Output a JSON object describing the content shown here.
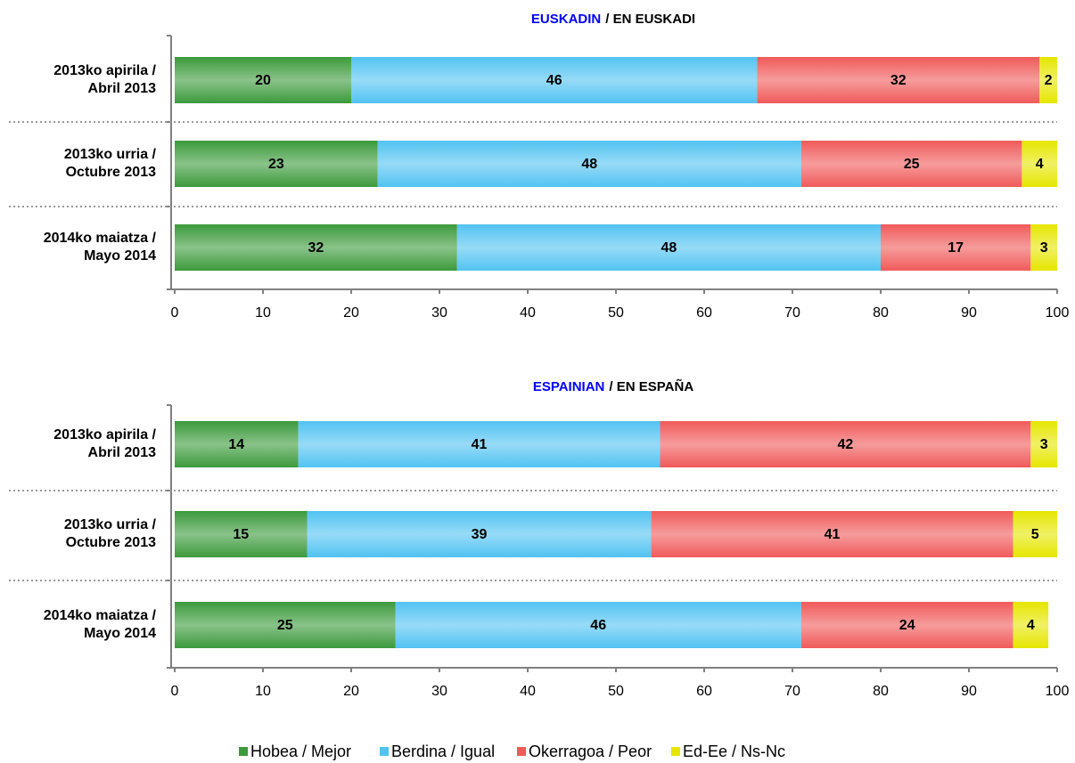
{
  "legend": [
    {
      "name": "Hobea / Mejor",
      "color": "#3c9a3c"
    },
    {
      "name": "Berdina / Igual",
      "color": "#52c3f2"
    },
    {
      "name": "Okerragoa / Peor",
      "color": "#f05a5a"
    },
    {
      "name": "Ed-Ee / Ns-Nc",
      "color": "#e6e600"
    }
  ],
  "chart_data": [
    {
      "type": "bar",
      "orientation": "horizontal",
      "stacked": true,
      "title_parts": [
        {
          "text": "EUSKADIN",
          "color": "#0000ff"
        },
        {
          "text": "/ EN EUSKADI",
          "color": "#000000"
        }
      ],
      "categories": [
        [
          "2013ko apirila /",
          "Abril 2013"
        ],
        [
          "2013ko urria /",
          "Octubre 2013"
        ],
        [
          "2014ko maiatza /",
          "Mayo 2014"
        ]
      ],
      "series": [
        {
          "values": [
            20,
            23,
            32
          ]
        },
        {
          "values": [
            46,
            48,
            48
          ]
        },
        {
          "values": [
            32,
            25,
            17
          ]
        },
        {
          "values": [
            2,
            4,
            3
          ]
        }
      ],
      "xlim": [
        0,
        100
      ],
      "xticks": [
        0,
        10,
        20,
        30,
        40,
        50,
        60,
        70,
        80,
        90,
        100
      ]
    },
    {
      "type": "bar",
      "orientation": "horizontal",
      "stacked": true,
      "title_parts": [
        {
          "text": "ESPAINIAN",
          "color": "#0000ff"
        },
        {
          "text": "/ EN ESPAÑA",
          "color": "#000000"
        }
      ],
      "categories": [
        [
          "2013ko apirila /",
          "Abril 2013"
        ],
        [
          "2013ko urria /",
          "Octubre 2013"
        ],
        [
          "2014ko maiatza /",
          "Mayo 2014"
        ]
      ],
      "series": [
        {
          "values": [
            14,
            15,
            25
          ]
        },
        {
          "values": [
            41,
            39,
            46
          ]
        },
        {
          "values": [
            42,
            41,
            24
          ]
        },
        {
          "values": [
            3,
            5,
            4
          ]
        }
      ],
      "xlim": [
        0,
        100
      ],
      "xticks": [
        0,
        10,
        20,
        30,
        40,
        50,
        60,
        70,
        80,
        90,
        100
      ]
    }
  ]
}
